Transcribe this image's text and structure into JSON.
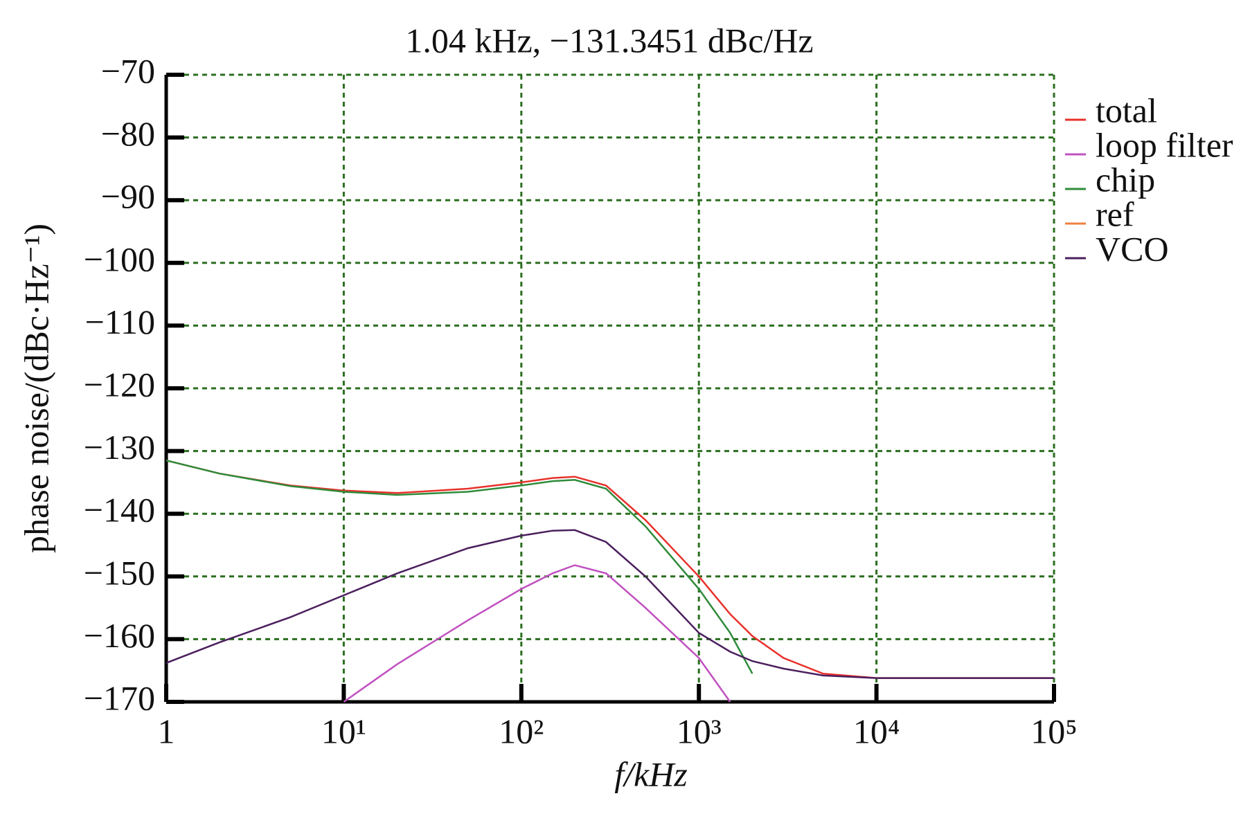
{
  "chart_data": {
    "type": "line",
    "title": "1.04 kHz, −131.3451 dBc/Hz",
    "x_label": "f/kHz",
    "y_label": "phase noise/(dBc·Hz⁻¹)",
    "x_scale": "log",
    "grid": true,
    "legend": "right",
    "x": [
      1,
      2,
      5,
      10,
      20,
      50,
      100,
      150,
      200,
      300,
      500,
      1000,
      1500,
      2000,
      3000,
      5000,
      10000,
      100000
    ],
    "series": [
      {
        "name": "total",
        "color": "#e8302a",
        "values": [
          -131.5,
          -133.6,
          -135.5,
          -136.3,
          -136.7,
          -136,
          -135,
          -134.3,
          -134.1,
          -135.5,
          -141,
          -150,
          -156,
          -159.5,
          -163,
          -165.5,
          -166.2,
          -166.2
        ]
      },
      {
        "name": "loop filter",
        "color": "#c050c0",
        "values": [
          null,
          null,
          null,
          -170,
          -164,
          -157,
          -152,
          -149.5,
          -148.2,
          -149.5,
          -155,
          -163,
          -170,
          null,
          null,
          null,
          null,
          null
        ]
      },
      {
        "name": "chip",
        "color": "#2e8b3a",
        "values": [
          -131.5,
          -133.6,
          -135.6,
          -136.5,
          -137,
          -136.5,
          -135.5,
          -134.8,
          -134.6,
          -136,
          -142,
          -152,
          -159,
          -165.5,
          null,
          null,
          null,
          null
        ]
      },
      {
        "name": "ref",
        "color": "#f08040",
        "values": [
          null,
          null,
          null,
          null,
          null,
          null,
          null,
          null,
          null,
          null,
          null,
          null,
          null,
          null,
          null,
          null,
          null,
          null
        ]
      },
      {
        "name": "VCO",
        "color": "#4b1f5e",
        "values": [
          -163.8,
          -160.5,
          -156.5,
          -153,
          -149.5,
          -145.5,
          -143.5,
          -142.7,
          -142.6,
          -144.5,
          -150,
          -159,
          -162,
          -163.5,
          -164.7,
          -165.8,
          -166.2,
          -166.2
        ]
      }
    ],
    "xlim": [
      1,
      100000
    ],
    "xticks": [
      1,
      {
        "value": 10,
        "label": "10¹"
      },
      {
        "value": 100,
        "label": "10²"
      },
      {
        "value": 1000,
        "label": "10³"
      },
      {
        "value": 10000,
        "label": "10⁴"
      },
      {
        "value": 100000,
        "label": "10⁵"
      }
    ],
    "ylim": [
      -170,
      -70
    ],
    "yticks": [
      {
        "value": -170,
        "label": "−170"
      },
      {
        "value": -160,
        "label": "−160"
      },
      {
        "value": -150,
        "label": "−150"
      },
      {
        "value": -140,
        "label": "−140"
      },
      {
        "value": -130,
        "label": "−130"
      },
      {
        "value": -120,
        "label": "−120"
      },
      {
        "value": -110,
        "label": "−110"
      },
      {
        "value": -100,
        "label": "−100"
      },
      {
        "value": -90,
        "label": "−90"
      },
      {
        "value": -80,
        "label": "−80"
      },
      {
        "value": -70,
        "label": "−70"
      }
    ]
  }
}
